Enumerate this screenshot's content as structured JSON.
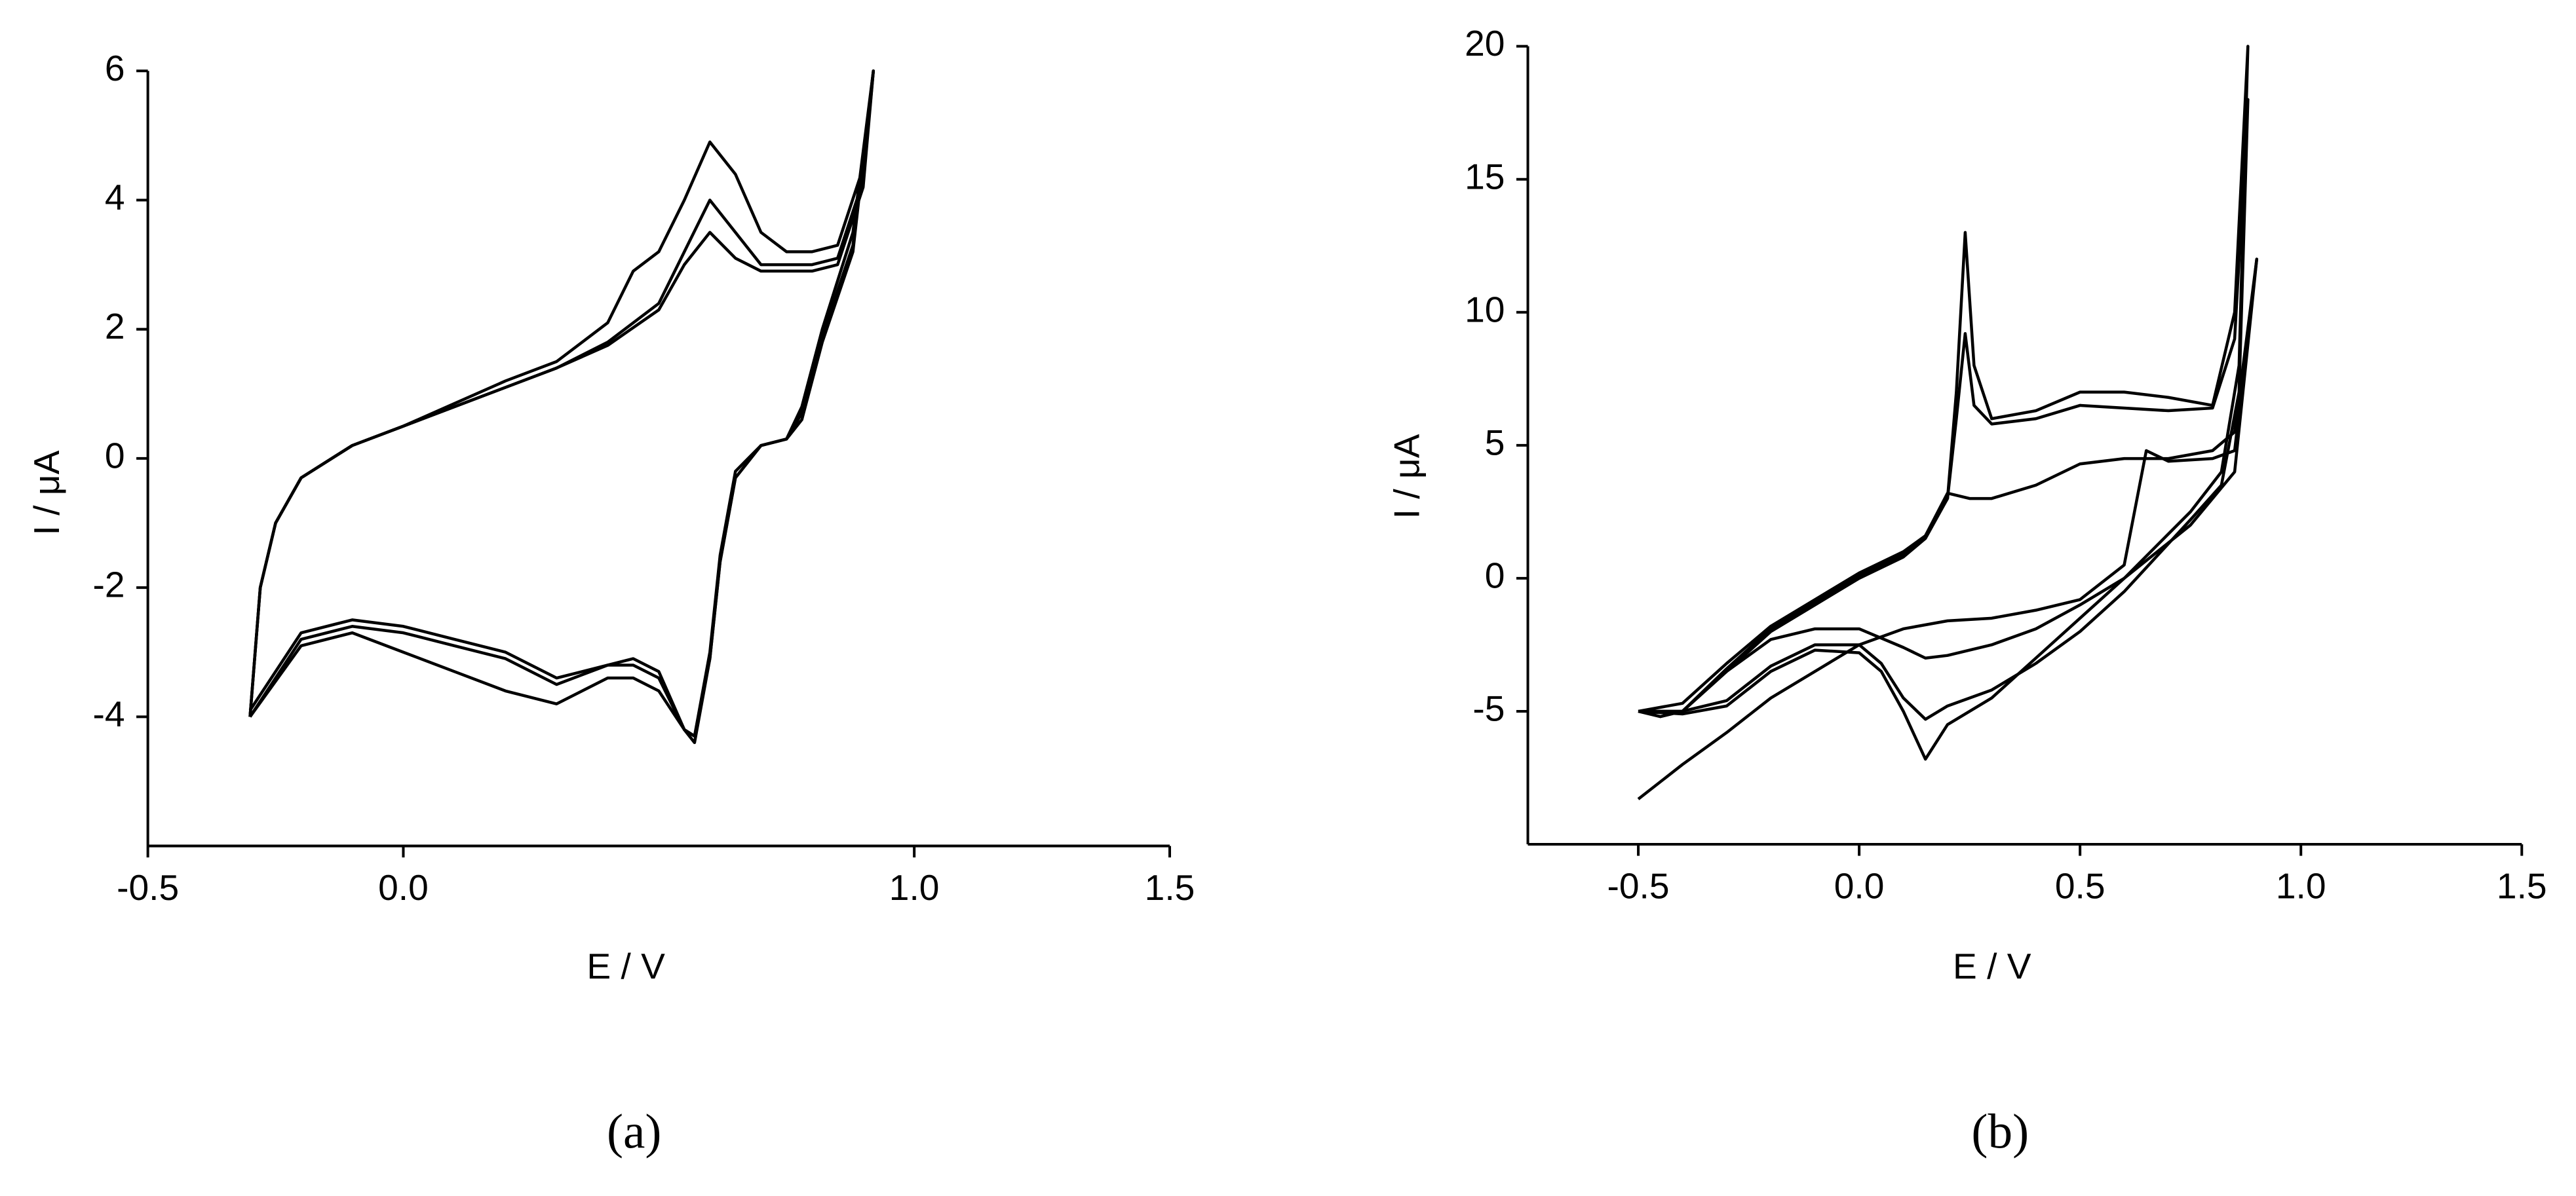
{
  "chart_data": [
    {
      "type": "line",
      "xlabel": "E / V",
      "ylabel": "I / μA",
      "caption": "(a)",
      "xlim": [
        -0.5,
        1.5
      ],
      "xticks": [
        -0.5,
        {
          "value": 0,
          "label": "0.0"
        },
        {
          "value": 1,
          "label": "1.0"
        },
        1.5
      ],
      "ylim": [
        -6,
        6
      ],
      "yticks": [
        6,
        4,
        2,
        0,
        -2,
        -4
      ],
      "series": [
        {
          "color": "#000000",
          "x": [
            -0.3,
            -0.28,
            -0.25,
            -0.2,
            -0.1,
            0,
            0.1,
            0.2,
            0.3,
            0.4,
            0.45,
            0.5,
            0.55,
            0.6,
            0.65,
            0.7,
            0.75,
            0.8,
            0.85,
            0.9,
            0.92,
            0.88,
            0.82,
            0.78,
            0.75,
            0.7,
            0.65,
            0.62,
            0.6,
            0.57,
            0.55,
            0.5,
            0.45,
            0.4,
            0.35,
            0.3,
            0.2,
            0.1,
            0,
            -0.1,
            -0.2,
            -0.3
          ],
          "values": [
            -4.0,
            -2.0,
            -1.0,
            -0.3,
            0.2,
            0.5,
            0.85,
            1.2,
            1.5,
            2.1,
            2.9,
            3.2,
            4.0,
            4.9,
            4.4,
            3.5,
            3.2,
            3.2,
            3.3,
            4.5,
            6,
            3.5,
            2.0,
            0.8,
            0.3,
            0.2,
            -0.2,
            -1.5,
            -3.0,
            -4.3,
            -4.2,
            -3.6,
            -3.4,
            -3.4,
            -3.6,
            -3.8,
            -3.6,
            -3.3,
            -3.0,
            -2.7,
            -2.9,
            -4.0
          ]
        },
        {
          "color": "#000000",
          "x": [
            -0.3,
            -0.28,
            -0.25,
            -0.2,
            -0.1,
            0,
            0.1,
            0.2,
            0.3,
            0.4,
            0.5,
            0.55,
            0.6,
            0.65,
            0.7,
            0.75,
            0.8,
            0.85,
            0.9,
            0.92,
            0.88,
            0.82,
            0.78,
            0.75,
            0.7,
            0.65,
            0.62,
            0.6,
            0.57,
            0.55,
            0.5,
            0.45,
            0.4,
            0.3,
            0.2,
            0.1,
            0,
            -0.1,
            -0.2,
            -0.3
          ],
          "values": [
            -4.0,
            -2.0,
            -1.0,
            -0.3,
            0.2,
            0.5,
            0.8,
            1.1,
            1.4,
            1.8,
            2.4,
            3.2,
            4.0,
            3.5,
            3.0,
            3.0,
            3.0,
            3.1,
            4.3,
            6,
            3.3,
            1.9,
            0.7,
            0.3,
            0.2,
            -0.3,
            -1.6,
            -3.1,
            -4.3,
            -4.2,
            -3.4,
            -3.2,
            -3.2,
            -3.5,
            -3.1,
            -2.9,
            -2.7,
            -2.6,
            -2.8,
            -4.0
          ]
        },
        {
          "color": "#000000",
          "x": [
            -0.3,
            -0.28,
            -0.25,
            -0.2,
            -0.1,
            0,
            0.1,
            0.2,
            0.3,
            0.4,
            0.5,
            0.55,
            0.6,
            0.65,
            0.7,
            0.75,
            0.8,
            0.85,
            0.9,
            0.92,
            0.88,
            0.82,
            0.78,
            0.75,
            0.7,
            0.65,
            0.62,
            0.6,
            0.57,
            0.55,
            0.5,
            0.45,
            0.4,
            0.3,
            0.2,
            0.1,
            0,
            -0.1,
            -0.2,
            -0.3
          ],
          "values": [
            -4.0,
            -2.0,
            -1.0,
            -0.3,
            0.2,
            0.5,
            0.8,
            1.1,
            1.4,
            1.75,
            2.3,
            3.0,
            3.5,
            3.1,
            2.9,
            2.9,
            2.9,
            3.0,
            4.2,
            6,
            3.2,
            1.8,
            0.6,
            0.3,
            0.2,
            -0.3,
            -1.6,
            -3.1,
            -4.4,
            -4.2,
            -3.3,
            -3.1,
            -3.2,
            -3.4,
            -3.0,
            -2.8,
            -2.6,
            -2.5,
            -2.7,
            -3.9
          ]
        }
      ]
    },
    {
      "type": "line",
      "xlabel": "E / V",
      "ylabel": "I / μA",
      "caption": "(b)",
      "xlim": [
        -0.75,
        1.5
      ],
      "xticks": [
        -0.5,
        {
          "value": 0,
          "label": "0.0"
        },
        0.5,
        {
          "value": 1,
          "label": "1.0"
        },
        1.5
      ],
      "ylim": [
        -10,
        20
      ],
      "yticks": [
        20,
        15,
        10,
        5,
        0,
        -5
      ],
      "series": [
        {
          "color": "#000000",
          "x": [
            -0.5,
            -0.45,
            -0.4,
            -0.3,
            -0.2,
            -0.1,
            0,
            0.1,
            0.15,
            0.2,
            0.22,
            0.24,
            0.26,
            0.3,
            0.4,
            0.5,
            0.6,
            0.7,
            0.8,
            0.85,
            0.88,
            0.86,
            0.82,
            0.75,
            0.6,
            0.5,
            0.4,
            0.3,
            0.2,
            0.15,
            0.1,
            0.05,
            0,
            -0.1,
            -0.2,
            -0.3,
            -0.4,
            -0.5
          ],
          "values": [
            -5,
            -5.2,
            -5.0,
            -3.5,
            -2.0,
            -1.0,
            0,
            0.8,
            1.5,
            3,
            7,
            13,
            8,
            6,
            6.3,
            7.0,
            7.0,
            6.8,
            6.5,
            10,
            20,
            8,
            4,
            2.5,
            0,
            -1.5,
            -3,
            -4.5,
            -5.5,
            -6.8,
            -5,
            -3.5,
            -2.8,
            -2.7,
            -3.5,
            -4.8,
            -5.1,
            -5
          ]
        },
        {
          "color": "#000000",
          "x": [
            -0.5,
            -0.45,
            -0.4,
            -0.3,
            -0.2,
            -0.1,
            0,
            0.1,
            0.15,
            0.2,
            0.22,
            0.24,
            0.26,
            0.3,
            0.4,
            0.5,
            0.6,
            0.7,
            0.8,
            0.85,
            0.88,
            0.86,
            0.82,
            0.75,
            0.6,
            0.5,
            0.4,
            0.3,
            0.2,
            0.15,
            0.1,
            0.05,
            0,
            -0.1,
            -0.2,
            -0.3,
            -0.4,
            -0.5
          ],
          "values": [
            -5,
            -5.2,
            -5.0,
            -3.4,
            -1.9,
            -0.9,
            0.1,
            0.9,
            1.6,
            3,
            6,
            9.2,
            6.5,
            5.8,
            6.0,
            6.5,
            6.4,
            6.3,
            6.4,
            9,
            18,
            7,
            3.5,
            2.2,
            -0.5,
            -2,
            -3.2,
            -4.2,
            -4.8,
            -5.3,
            -4.5,
            -3.2,
            -2.5,
            -2.5,
            -3.3,
            -4.6,
            -5.0,
            -5
          ]
        },
        {
          "color": "#000000",
          "x": [
            -0.5,
            -0.4,
            -0.3,
            -0.2,
            -0.1,
            0,
            0.1,
            0.15,
            0.2,
            0.25,
            0.3,
            0.4,
            0.5,
            0.6,
            0.7,
            0.8,
            0.85,
            0.9,
            0.85,
            0.75,
            0.6,
            0.5,
            0.4,
            0.3,
            0.2,
            0.15,
            0.1,
            0,
            -0.1,
            -0.2,
            -0.3,
            -0.4,
            -0.5
          ],
          "values": [
            -5,
            -4.7,
            -3.2,
            -1.8,
            -0.8,
            0.2,
            1.0,
            1.6,
            3.2,
            3.0,
            3.0,
            3.5,
            4.3,
            4.5,
            4.5,
            4.8,
            5.5,
            12,
            4,
            2,
            0,
            -1,
            -1.9,
            -2.5,
            -2.9,
            -3.0,
            -2.6,
            -1.9,
            -1.9,
            -2.3,
            -3.5,
            -5.0,
            -5
          ]
        },
        {
          "color": "#000000",
          "x": [
            -0.5,
            -0.4,
            -0.3,
            -0.2,
            -0.1,
            0,
            0.1,
            0.2,
            0.3,
            0.4,
            0.5,
            0.6,
            0.65,
            0.7,
            0.8,
            0.85,
            0.9
          ],
          "values": [
            -8.3,
            -7,
            -5.8,
            -4.5,
            -3.5,
            -2.5,
            -1.9,
            -1.6,
            -1.5,
            -1.2,
            -0.8,
            0.5,
            4.8,
            4.4,
            4.5,
            4.8,
            12
          ]
        }
      ]
    }
  ]
}
